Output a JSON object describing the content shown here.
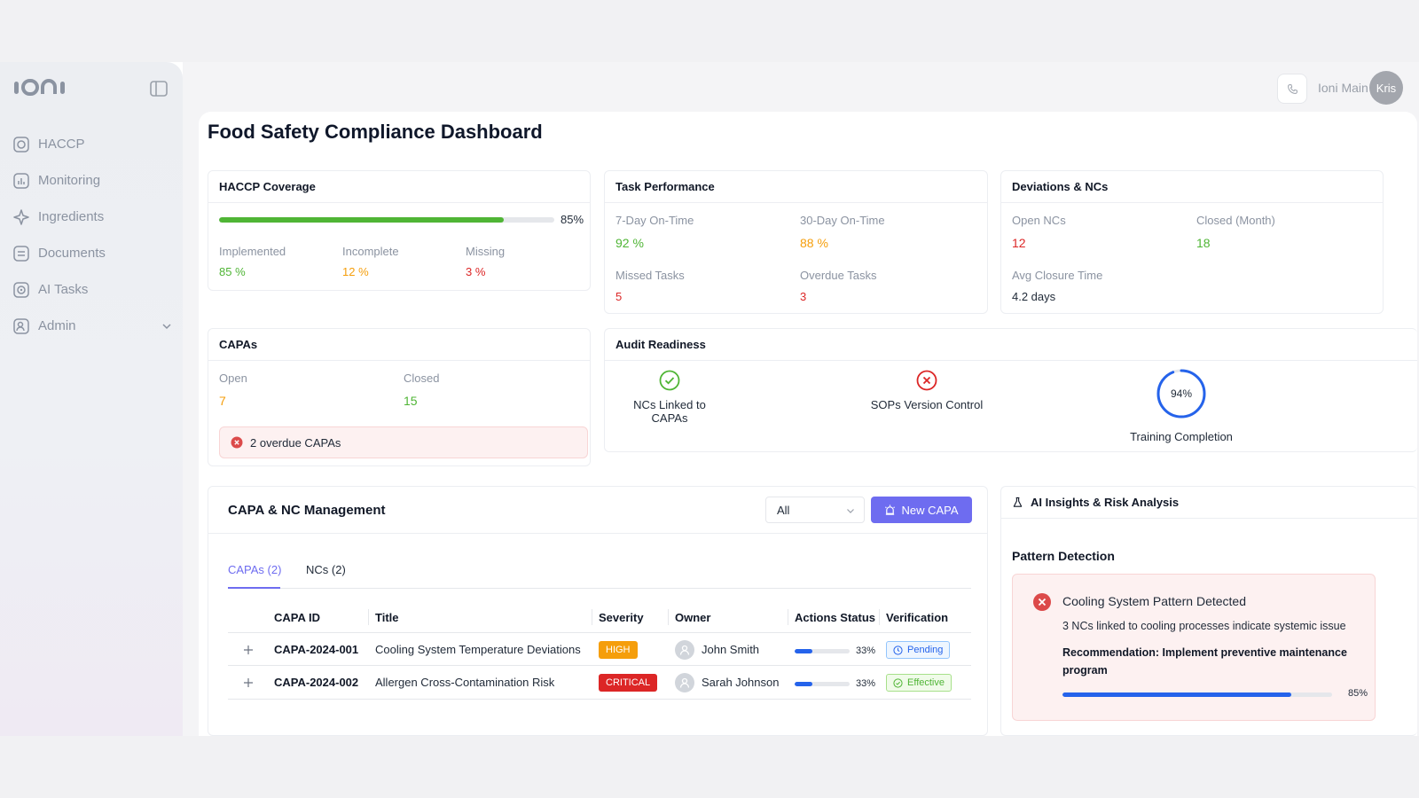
{
  "app": {
    "logo_text": "ioni"
  },
  "sidebar": {
    "items": [
      {
        "label": "HACCP",
        "icon": "haccp-icon"
      },
      {
        "label": "Monitoring",
        "icon": "monitoring-icon"
      },
      {
        "label": "Ingredients",
        "icon": "ingredients-icon"
      },
      {
        "label": "Documents",
        "icon": "documents-icon"
      },
      {
        "label": "AI Tasks",
        "icon": "ai-tasks-icon"
      },
      {
        "label": "Admin",
        "icon": "admin-icon"
      }
    ]
  },
  "topbar": {
    "user_name": "Ioni Main",
    "avatar_initials": "Kris"
  },
  "page": {
    "title": "Food Safety Compliance Dashboard"
  },
  "haccp": {
    "title": "HACCP Coverage",
    "coverage_pct": 85,
    "coverage_label": "85%",
    "implemented_label": "Implemented",
    "implemented_value": "85 %",
    "incomplete_label": "Incomplete",
    "incomplete_value": "12 %",
    "missing_label": "Missing",
    "missing_value": "3 %"
  },
  "tasks": {
    "title": "Task Performance",
    "ontime7_label": "7-Day On-Time",
    "ontime7_value": "92 %",
    "ontime30_label": "30-Day On-Time",
    "ontime30_value": "88 %",
    "missed_label": "Missed Tasks",
    "missed_value": "5",
    "overdue_label": "Overdue Tasks",
    "overdue_value": "3"
  },
  "deviations": {
    "title": "Deviations & NCs",
    "open_label": "Open NCs",
    "open_value": "12",
    "closed_label": "Closed (Month)",
    "closed_value": "18",
    "avg_label": "Avg Closure Time",
    "avg_value": "4.2 days"
  },
  "capas": {
    "title": "CAPAs",
    "open_label": "Open",
    "open_value": "7",
    "closed_label": "Closed",
    "closed_value": "15",
    "alert": "2 overdue CAPAs"
  },
  "audit": {
    "title": "Audit Readiness",
    "item1": "NCs Linked to CAPAs",
    "item2": "SOPs Version Control",
    "training_label": "Training Completion",
    "training_pct": 94,
    "training_value": "94%"
  },
  "management": {
    "title": "CAPA & NC Management",
    "filter_value": "All",
    "new_button": "New CAPA",
    "tabs": [
      "CAPAs (2)",
      "NCs (2)"
    ],
    "columns": [
      "CAPA ID",
      "Title",
      "Severity",
      "Owner",
      "Actions Status",
      "Verification"
    ],
    "rows": [
      {
        "id": "CAPA-2024-001",
        "title": "Cooling System Temperature Deviations",
        "severity": "HIGH",
        "severity_color": "#f59e0b",
        "owner": "John Smith",
        "progress": 33,
        "progress_label": "33%",
        "verification": "Pending"
      },
      {
        "id": "CAPA-2024-002",
        "title": "Allergen Cross-Contamination Risk",
        "severity": "CRITICAL",
        "severity_color": "#dc2626",
        "owner": "Sarah Johnson",
        "progress": 33,
        "progress_label": "33%",
        "verification": "Effective"
      }
    ]
  },
  "insights": {
    "title": "AI Insights & Risk Analysis",
    "section": "Pattern Detection",
    "pattern_title": "Cooling System Pattern Detected",
    "pattern_desc": "3 NCs linked to cooling processes indicate systemic issue",
    "recommendation": "Recommendation: Implement preventive maintenance program",
    "confidence_pct": 85,
    "confidence_label": "85%"
  },
  "colors": {
    "accent": "#6e6cf0",
    "green": "#4fb535",
    "orange": "#f59e0b",
    "red": "#dc2626",
    "blue": "#2563eb"
  }
}
